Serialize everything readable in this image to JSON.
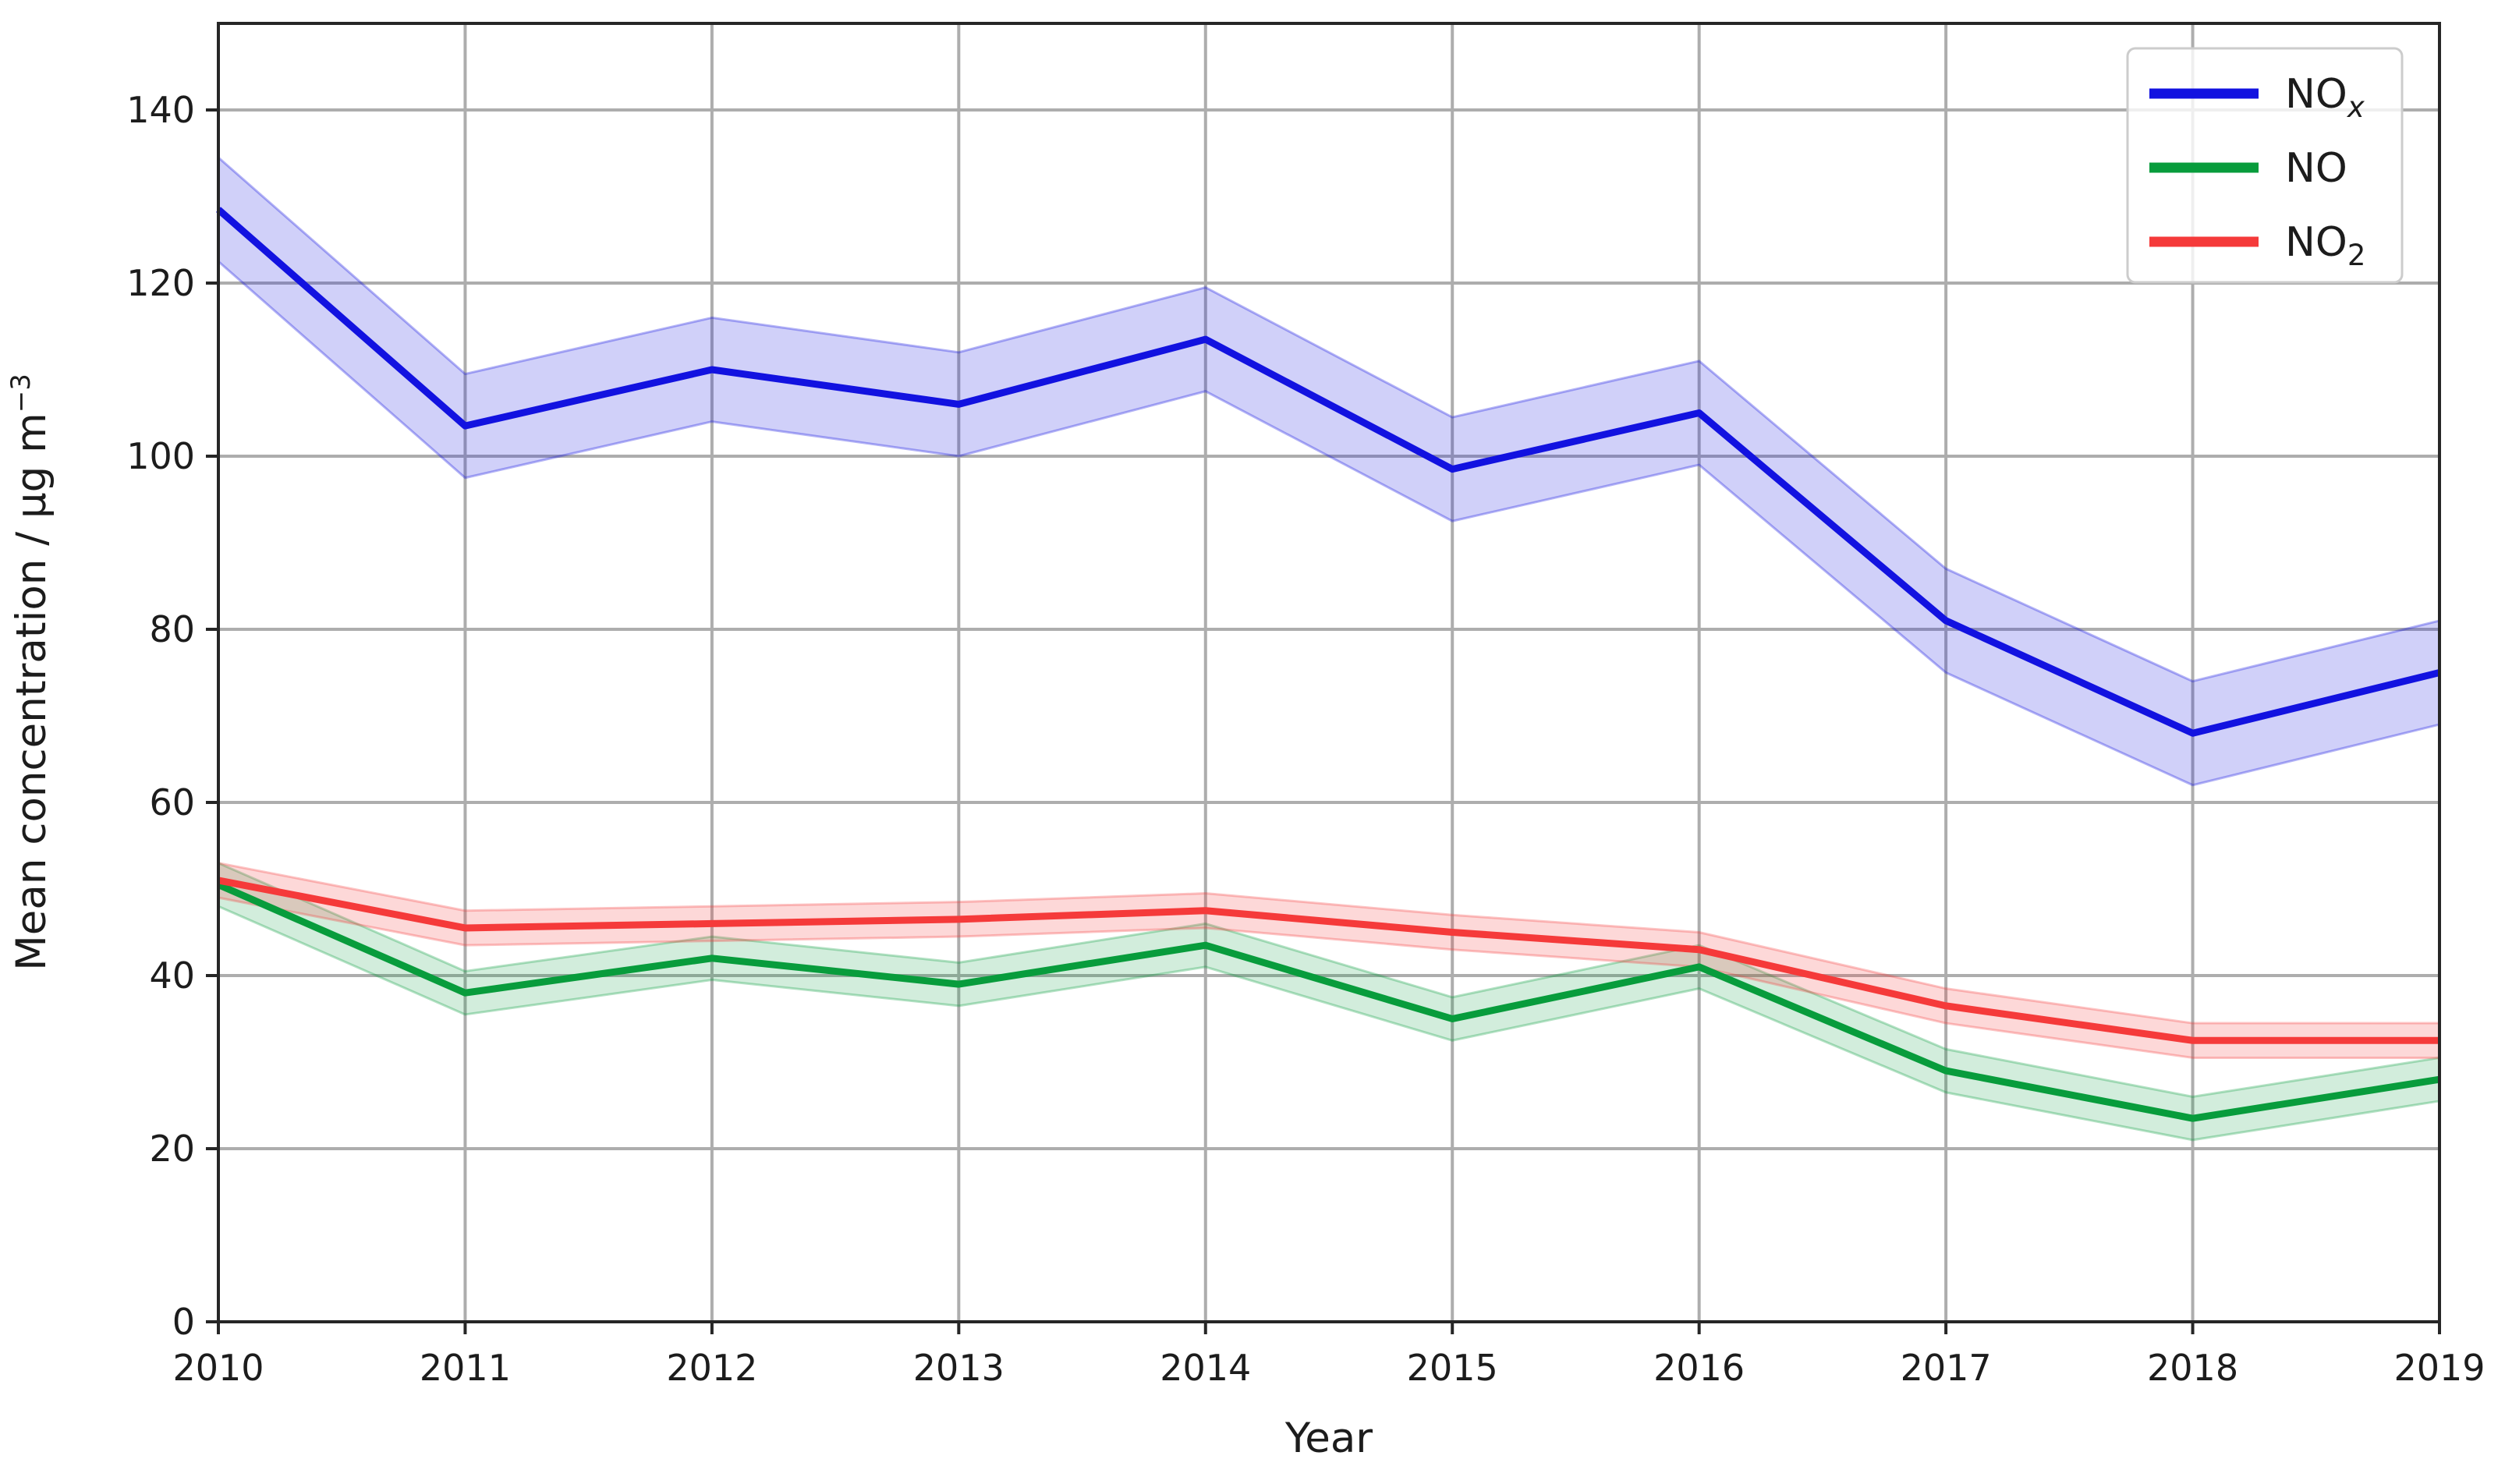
{
  "chart_data": {
    "type": "line",
    "title": "",
    "xlabel": "Year",
    "ylabel": "Mean concentration / µg m⁻³",
    "ylabel_base": "Mean concentration / µg m",
    "ylabel_sup": "−3",
    "x": [
      2010,
      2011,
      2012,
      2013,
      2014,
      2015,
      2016,
      2017,
      2018,
      2019
    ],
    "xlim": [
      2010,
      2019
    ],
    "ylim": [
      0,
      150
    ],
    "yticks": [
      0,
      20,
      40,
      60,
      80,
      100,
      120,
      140
    ],
    "grid": true,
    "legend_position": "upper right",
    "background_color": "#ffffff",
    "gridline_color": "#adadad",
    "spine_color": "#262626",
    "legend_border_color": "#cccccc",
    "series": [
      {
        "name": "NOx",
        "label_base": "NO",
        "label_sub": "x",
        "color": "#1212e0",
        "band_fill": "rgba(18,18,224,0.20)",
        "band_edge": "rgba(18,18,224,0.32)",
        "values": [
          128.5,
          103.5,
          110,
          106,
          113.5,
          98.5,
          105,
          81,
          68,
          75
        ],
        "ci": 6
      },
      {
        "name": "NO",
        "label_base": "NO",
        "label_sub": "",
        "color": "#089c3c",
        "band_fill": "rgba(8,156,60,0.18)",
        "band_edge": "rgba(8,156,60,0.30)",
        "values": [
          50.5,
          38,
          42,
          39,
          43.5,
          35,
          41,
          29,
          23.5,
          28
        ],
        "ci": 2.5
      },
      {
        "name": "NO2",
        "label_base": "NO",
        "label_sub": "2",
        "color": "#f53a3a",
        "band_fill": "rgba(245,58,58,0.20)",
        "band_edge": "rgba(245,58,58,0.30)",
        "values": [
          51,
          45.5,
          46,
          46.5,
          47.5,
          45,
          43,
          36.5,
          32.5,
          32.5
        ],
        "ci": 2
      }
    ]
  }
}
